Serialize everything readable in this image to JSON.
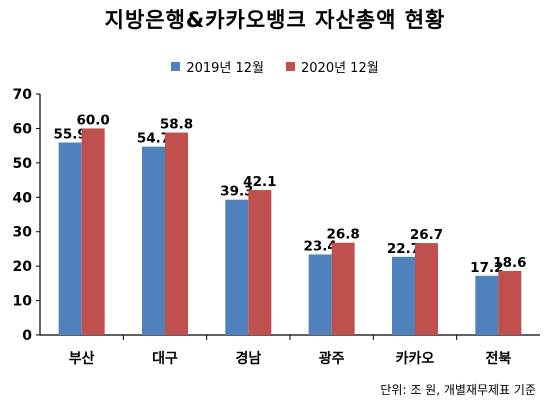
{
  "chart_data": {
    "type": "bar",
    "title": "지방은행&카카오뱅크 자산총액 현황",
    "categories": [
      "부산",
      "대구",
      "경남",
      "광주",
      "카카오",
      "전북"
    ],
    "series": [
      {
        "name": "2019년 12월",
        "color": "#4f81bd",
        "values": [
          55.9,
          54.7,
          39.3,
          23.4,
          22.7,
          17.2
        ]
      },
      {
        "name": "2020년 12월",
        "color": "#c0504d",
        "values": [
          60.0,
          58.8,
          42.1,
          26.8,
          26.7,
          18.6
        ]
      }
    ],
    "ylim": [
      0,
      70
    ],
    "yticks": [
      0,
      10,
      20,
      30,
      40,
      50,
      60,
      70
    ],
    "grid": false,
    "legend_position": "top",
    "note": "단위: 조 원, 개별재무제표 기준"
  }
}
